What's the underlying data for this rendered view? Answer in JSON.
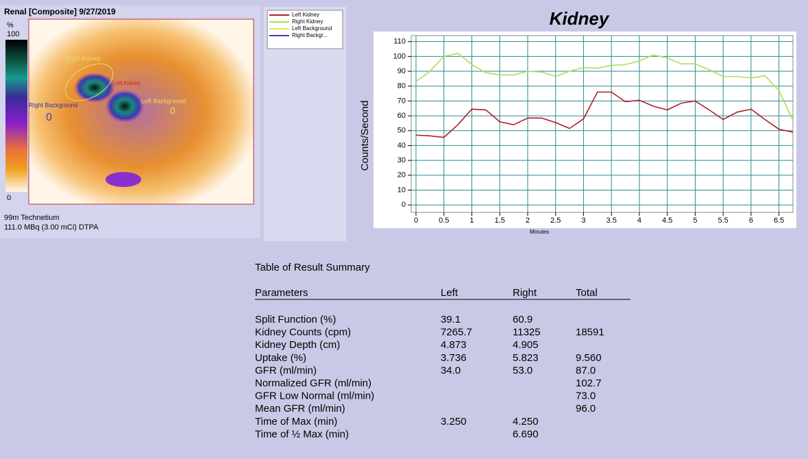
{
  "scan": {
    "title": "Renal [Composite] 9/27/2019",
    "scale_unit": "%",
    "scale_max": "100",
    "scale_min": "0",
    "rois": [
      "Right Kidney",
      "Left Kidney",
      "Right Background",
      "Left Background"
    ],
    "background_marks": [
      "0",
      "0"
    ],
    "isotope": "99m Technetium",
    "dose": "111.0 MBq (3.00 mCi) DTPA"
  },
  "chart_data": {
    "type": "line",
    "title": "Kidney",
    "y_label": "Counts/Second",
    "x_label": "Minutes",
    "x": [
      0,
      0.25,
      0.5,
      0.75,
      1,
      1.25,
      1.5,
      1.75,
      2,
      2.25,
      2.5,
      2.75,
      3,
      3.25,
      3.5,
      3.75,
      4,
      4.25,
      4.5,
      4.75,
      5,
      5.25,
      5.5,
      5.75,
      6,
      6.25,
      6.5,
      6.75
    ],
    "series": [
      {
        "name": "Left Kidney",
        "color": "#b01c24",
        "values": [
          47,
          46.5,
          45.5,
          54,
          64.5,
          64,
          56,
          54,
          58.5,
          58.5,
          55.5,
          51.5,
          58,
          76,
          76,
          69.5,
          70.5,
          66.5,
          64,
          68.5,
          70,
          64,
          57.5,
          62.5,
          64.5,
          57.5,
          51,
          49
        ]
      },
      {
        "name": "Right Kidney",
        "color": "#a8e05a",
        "values": [
          83,
          90,
          100,
          102,
          94.5,
          89,
          87.5,
          87.5,
          90,
          89.5,
          86.5,
          90,
          92.5,
          92,
          94,
          94.5,
          97,
          101,
          99,
          95,
          95,
          91,
          86.5,
          86.5,
          85.5,
          87,
          77,
          57
        ]
      },
      {
        "name": "Left Background",
        "color": "#e6e63c"
      },
      {
        "name": "Right Backgr...",
        "color": "#3c3cc8"
      }
    ],
    "xlim": [
      0,
      6.75
    ],
    "ylim": [
      -5,
      114
    ],
    "xticks": [
      0,
      0.5,
      1,
      1.5,
      2,
      2.5,
      3,
      3.5,
      4,
      4.5,
      5,
      5.5,
      6,
      6.5
    ],
    "yticks": [
      0,
      10,
      20,
      30,
      40,
      50,
      60,
      70,
      80,
      90,
      100,
      110
    ],
    "grid": true
  },
  "table": {
    "title": "Table of Result Summary",
    "header": [
      "Parameters",
      "Left",
      "Right",
      "Total"
    ],
    "rows": [
      [
        "Split Function (%)",
        "39.1",
        "60.9",
        null
      ],
      [
        "Kidney Counts (cpm)",
        "7265.7",
        "11325",
        "18591"
      ],
      [
        "Kidney Depth (cm)",
        "4.873",
        "4.905",
        null
      ],
      [
        "Uptake (%)",
        "3.736",
        "5.823",
        "9.560"
      ],
      [
        "GFR (ml/min)",
        "34.0",
        "53.0",
        "87.0"
      ],
      [
        "Normalized GFR (ml/min)",
        null,
        null,
        "102.7"
      ],
      [
        "GFR Low Normal (ml/min)",
        null,
        null,
        "73.0"
      ],
      [
        "Mean GFR (ml/min)",
        null,
        null,
        "96.0"
      ],
      [
        "Time of Max (min)",
        "3.250",
        "4.250",
        null
      ],
      [
        "Time of ½ Max (min)",
        null,
        "6.690",
        null
      ]
    ]
  }
}
